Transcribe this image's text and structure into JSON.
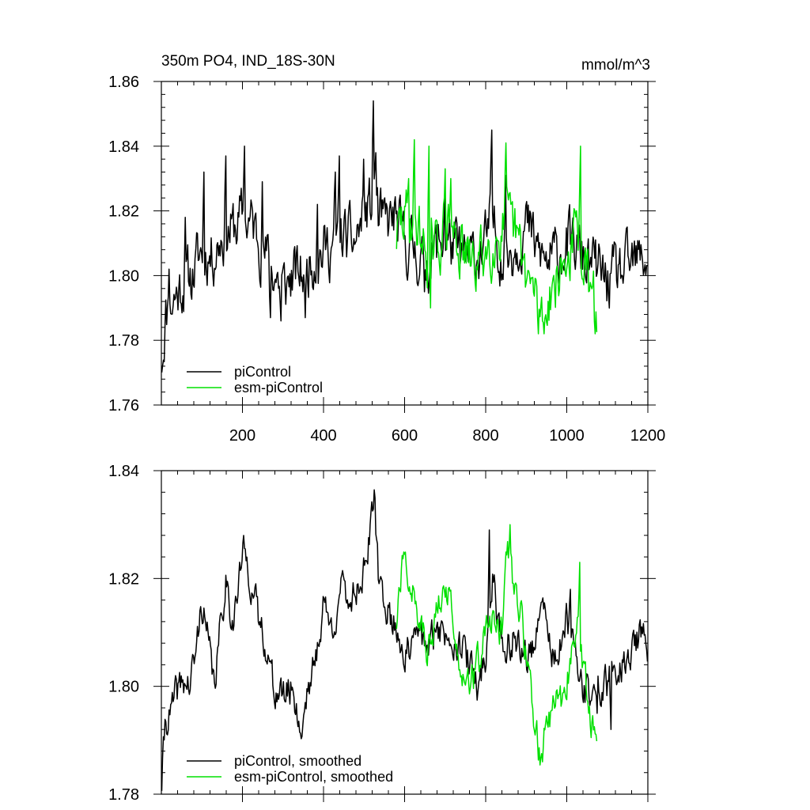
{
  "figure": {
    "title_left": "350m PO4, IND_18S-30N",
    "title_right": "mmol/m^3"
  },
  "colors": {
    "piControl": "#000000",
    "esm_piControl": "#00e000",
    "axis": "#000000"
  },
  "chart_data": [
    {
      "type": "line",
      "panel": "top",
      "title": "350m PO4, IND_18S-30N",
      "units_label": "mmol/m^3",
      "xlim": [
        0,
        1200
      ],
      "ylim": [
        1.76,
        1.86
      ],
      "x_ticks": [
        200,
        400,
        600,
        800,
        1000,
        1200
      ],
      "x_tick_labels": [
        "200",
        "400",
        "600",
        "800",
        "1000",
        "1200"
      ],
      "y_ticks": [
        1.76,
        1.78,
        1.8,
        1.82,
        1.84,
        1.86
      ],
      "y_tick_labels": [
        "1.76",
        "1.78",
        "1.80",
        "1.82",
        "1.84",
        "1.86"
      ],
      "legend_position": "bottom-left",
      "series": [
        {
          "name": "piControl",
          "color": "#000000",
          "x_start": 1,
          "x_end": 1200,
          "anchors": [
            [
              1,
              1.772
            ],
            [
              10,
              1.788
            ],
            [
              25,
              1.792
            ],
            [
              50,
              1.797
            ],
            [
              75,
              1.8
            ],
            [
              100,
              1.808
            ],
            [
              125,
              1.806
            ],
            [
              150,
              1.813
            ],
            [
              175,
              1.814
            ],
            [
              200,
              1.818
            ],
            [
              225,
              1.816
            ],
            [
              250,
              1.808
            ],
            [
              275,
              1.802
            ],
            [
              300,
              1.796
            ],
            [
              325,
              1.8
            ],
            [
              350,
              1.801
            ],
            [
              375,
              1.806
            ],
            [
              400,
              1.808
            ],
            [
              425,
              1.81
            ],
            [
              450,
              1.812
            ],
            [
              475,
              1.81
            ],
            [
              500,
              1.818
            ],
            [
              520,
              1.822
            ],
            [
              525,
              1.832
            ],
            [
              535,
              1.818
            ],
            [
              550,
              1.815
            ],
            [
              575,
              1.818
            ],
            [
              600,
              1.81
            ],
            [
              625,
              1.808
            ],
            [
              650,
              1.804
            ],
            [
              675,
              1.808
            ],
            [
              700,
              1.812
            ],
            [
              725,
              1.808
            ],
            [
              750,
              1.804
            ],
            [
              775,
              1.806
            ],
            [
              800,
              1.81
            ],
            [
              815,
              1.818
            ],
            [
              835,
              1.808
            ],
            [
              850,
              1.806
            ],
            [
              875,
              1.81
            ],
            [
              900,
              1.816
            ],
            [
              925,
              1.808
            ],
            [
              950,
              1.804
            ],
            [
              975,
              1.806
            ],
            [
              1000,
              1.81
            ],
            [
              1025,
              1.808
            ],
            [
              1050,
              1.804
            ],
            [
              1075,
              1.802
            ],
            [
              1100,
              1.798
            ],
            [
              1125,
              1.8
            ],
            [
              1150,
              1.802
            ],
            [
              1175,
              1.804
            ],
            [
              1200,
              1.806
            ]
          ],
          "noise": 0.0075,
          "spikes": [
            [
              4,
              1.772
            ],
            [
              20,
              1.802
            ],
            [
              60,
              1.818
            ],
            [
              105,
              1.832
            ],
            [
              160,
              1.837
            ],
            [
              205,
              1.84
            ],
            [
              250,
              1.829
            ],
            [
              385,
              1.822
            ],
            [
              430,
              1.832
            ],
            [
              440,
              1.837
            ],
            [
              500,
              1.836
            ],
            [
              524,
              1.854
            ],
            [
              530,
              1.838
            ],
            [
              700,
              1.825
            ],
            [
              815,
              1.845
            ],
            [
              850,
              1.831
            ],
            [
              270,
              1.787
            ],
            [
              295,
              1.786
            ],
            [
              355,
              1.787
            ],
            [
              650,
              1.795
            ]
          ],
          "seed": 11
        },
        {
          "name": "esm-piControl",
          "color": "#00e000",
          "x_start": 580,
          "x_end": 1075,
          "anchors": [
            [
              580,
              1.812
            ],
            [
              600,
              1.818
            ],
            [
              625,
              1.818
            ],
            [
              650,
              1.808
            ],
            [
              675,
              1.806
            ],
            [
              700,
              1.816
            ],
            [
              725,
              1.812
            ],
            [
              750,
              1.805
            ],
            [
              775,
              1.803
            ],
            [
              800,
              1.808
            ],
            [
              825,
              1.812
            ],
            [
              850,
              1.816
            ],
            [
              875,
              1.812
            ],
            [
              900,
              1.8
            ],
            [
              925,
              1.792
            ],
            [
              940,
              1.788
            ],
            [
              960,
              1.796
            ],
            [
              980,
              1.8
            ],
            [
              1000,
              1.804
            ],
            [
              1025,
              1.814
            ],
            [
              1040,
              1.806
            ],
            [
              1060,
              1.792
            ],
            [
              1075,
              1.79
            ]
          ],
          "noise": 0.0075,
          "spikes": [
            [
              610,
              1.83
            ],
            [
              625,
              1.842
            ],
            [
              660,
              1.84
            ],
            [
              700,
              1.833
            ],
            [
              715,
              1.83
            ],
            [
              850,
              1.841
            ],
            [
              1035,
              1.84
            ],
            [
              930,
              1.782
            ],
            [
              945,
              1.782
            ],
            [
              1070,
              1.782
            ],
            [
              665,
              1.79
            ]
          ],
          "seed": 29
        }
      ]
    },
    {
      "type": "line",
      "panel": "bottom",
      "xlim": [
        0,
        1200
      ],
      "ylim": [
        1.78,
        1.84
      ],
      "y_ticks": [
        1.78,
        1.8,
        1.82,
        1.84
      ],
      "y_tick_labels": [
        "1.78",
        "1.80",
        "1.82",
        "1.84"
      ],
      "legend_position": "bottom-left",
      "series": [
        {
          "name": "piControl, smoothed",
          "color": "#000000",
          "x_start": 1,
          "x_end": 1200,
          "anchors": [
            [
              1,
              1.782
            ],
            [
              10,
              1.794
            ],
            [
              25,
              1.795
            ],
            [
              40,
              1.799
            ],
            [
              55,
              1.801
            ],
            [
              70,
              1.8
            ],
            [
              85,
              1.806
            ],
            [
              100,
              1.816
            ],
            [
              115,
              1.808
            ],
            [
              130,
              1.8
            ],
            [
              145,
              1.81
            ],
            [
              160,
              1.821
            ],
            [
              175,
              1.812
            ],
            [
              190,
              1.818
            ],
            [
              200,
              1.825
            ],
            [
              215,
              1.822
            ],
            [
              225,
              1.818
            ],
            [
              240,
              1.812
            ],
            [
              260,
              1.808
            ],
            [
              275,
              1.8
            ],
            [
              300,
              1.798
            ],
            [
              325,
              1.8
            ],
            [
              345,
              1.791
            ],
            [
              360,
              1.8
            ],
            [
              380,
              1.804
            ],
            [
              400,
              1.816
            ],
            [
              420,
              1.81
            ],
            [
              440,
              1.818
            ],
            [
              460,
              1.816
            ],
            [
              480,
              1.818
            ],
            [
              500,
              1.822
            ],
            [
              520,
              1.83
            ],
            [
              525,
              1.836
            ],
            [
              535,
              1.82
            ],
            [
              550,
              1.816
            ],
            [
              570,
              1.812
            ],
            [
              585,
              1.81
            ],
            [
              600,
              1.806
            ],
            [
              620,
              1.807
            ],
            [
              640,
              1.81
            ],
            [
              660,
              1.806
            ],
            [
              680,
              1.812
            ],
            [
              700,
              1.809
            ],
            [
              720,
              1.81
            ],
            [
              740,
              1.807
            ],
            [
              760,
              1.804
            ],
            [
              780,
              1.8
            ],
            [
              800,
              1.806
            ],
            [
              820,
              1.822
            ],
            [
              830,
              1.812
            ],
            [
              850,
              1.806
            ],
            [
              870,
              1.81
            ],
            [
              890,
              1.806
            ],
            [
              910,
              1.806
            ],
            [
              930,
              1.81
            ],
            [
              945,
              1.815
            ],
            [
              960,
              1.806
            ],
            [
              980,
              1.806
            ],
            [
              1000,
              1.812
            ],
            [
              1020,
              1.806
            ],
            [
              1040,
              1.8
            ],
            [
              1060,
              1.798
            ],
            [
              1080,
              1.8
            ],
            [
              1100,
              1.8
            ],
            [
              1120,
              1.804
            ],
            [
              1140,
              1.804
            ],
            [
              1160,
              1.806
            ],
            [
              1180,
              1.81
            ],
            [
              1200,
              1.806
            ]
          ],
          "noise": 0.0028,
          "spikes": [
            [
              810,
              1.829
            ],
            [
              1010,
              1.818
            ],
            [
              1075,
              1.795
            ],
            [
              1110,
              1.792
            ]
          ],
          "seed": 41
        },
        {
          "name": "esm-piControl, smoothed",
          "color": "#00e000",
          "x_start": 580,
          "x_end": 1075,
          "anchors": [
            [
              580,
              1.812
            ],
            [
              595,
              1.822
            ],
            [
              610,
              1.822
            ],
            [
              630,
              1.814
            ],
            [
              650,
              1.808
            ],
            [
              665,
              1.806
            ],
            [
              680,
              1.816
            ],
            [
              700,
              1.82
            ],
            [
              715,
              1.814
            ],
            [
              735,
              1.806
            ],
            [
              755,
              1.802
            ],
            [
              775,
              1.802
            ],
            [
              800,
              1.81
            ],
            [
              820,
              1.812
            ],
            [
              840,
              1.81
            ],
            [
              855,
              1.826
            ],
            [
              870,
              1.818
            ],
            [
              890,
              1.812
            ],
            [
              905,
              1.802
            ],
            [
              920,
              1.794
            ],
            [
              935,
              1.787
            ],
            [
              950,
              1.792
            ],
            [
              970,
              1.798
            ],
            [
              990,
              1.796
            ],
            [
              1010,
              1.806
            ],
            [
              1025,
              1.812
            ],
            [
              1040,
              1.804
            ],
            [
              1055,
              1.796
            ],
            [
              1075,
              1.789
            ]
          ],
          "noise": 0.0028,
          "spikes": [
            [
              860,
              1.83
            ],
            [
              1033,
              1.823
            ],
            [
              940,
              1.786
            ]
          ],
          "seed": 57
        }
      ]
    }
  ]
}
